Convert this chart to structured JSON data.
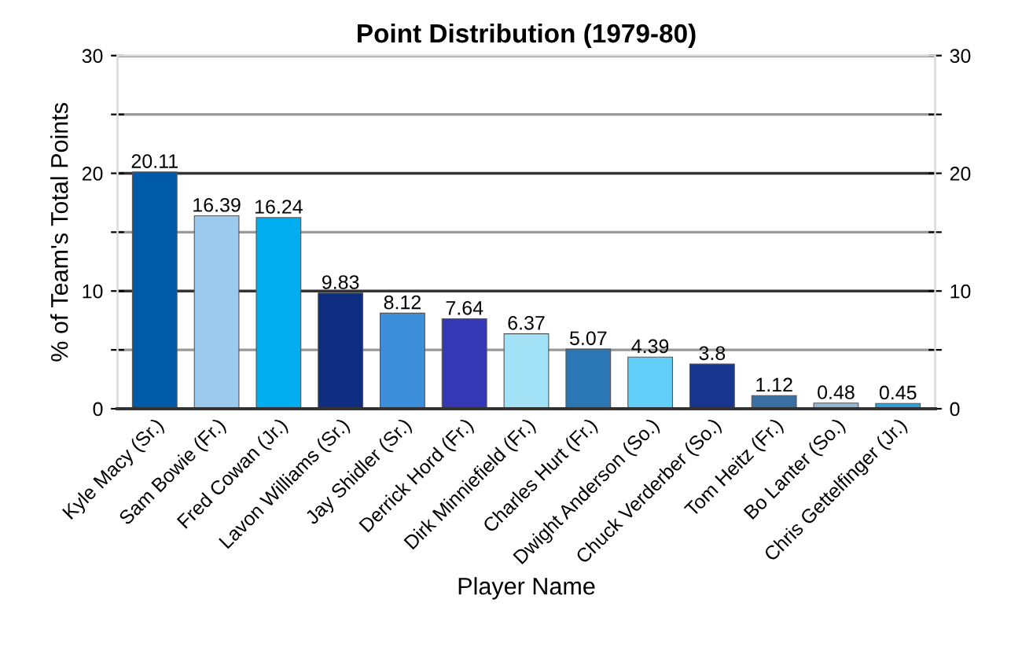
{
  "chart_data": {
    "type": "bar",
    "title": "Point Distribution (1979-80)",
    "xlabel": "Player Name",
    "ylabel": "% of Team's Total Points",
    "categories": [
      "Kyle Macy (Sr.)",
      "Sam Bowie (Fr.)",
      "Fred Cowan (Jr.)",
      "Lavon Williams (Sr.)",
      "Jay Shidler (Sr.)",
      "Derrick Hord (Fr.)",
      "Dirk Minniefield (Fr.)",
      "Charles Hurt (Fr.)",
      "Dwight Anderson (So.)",
      "Chuck Verderber (So.)",
      "Tom Heitz (Fr.)",
      "Bo Lanter (So.)",
      "Chris Gettelfinger (Jr.)"
    ],
    "values": [
      20.11,
      16.39,
      16.24,
      9.83,
      8.12,
      7.64,
      6.37,
      5.07,
      4.39,
      3.8,
      1.12,
      0.48,
      0.45
    ],
    "colors": [
      "#005aa8",
      "#9ccaee",
      "#00aeef",
      "#0f2d80",
      "#3d8fdc",
      "#3538b5",
      "#a3e1f7",
      "#2b77b5",
      "#63cff8",
      "#19368e",
      "#3a6fa3",
      "#94b7d6",
      "#32a0d2"
    ],
    "value_labels": [
      "20.11",
      "16.39",
      "16.24",
      "9.83",
      "8.12",
      "7.64",
      "6.37",
      "5.07",
      "4.39",
      "3.8",
      "1.12",
      "0.48",
      "0.45"
    ],
    "ylim": [
      0,
      30
    ],
    "yticks": [
      0,
      {
        "value": 5,
        "label": null
      },
      10,
      {
        "value": 15,
        "label": null
      },
      20,
      {
        "value": 25,
        "label": null
      },
      30
    ],
    "y2lim": [
      0,
      30
    ],
    "y2ticks": [
      0,
      {
        "value": 5,
        "label": null
      },
      10,
      {
        "value": 15,
        "label": null
      },
      20,
      {
        "value": 25,
        "label": null
      },
      30
    ],
    "grid": "y"
  }
}
